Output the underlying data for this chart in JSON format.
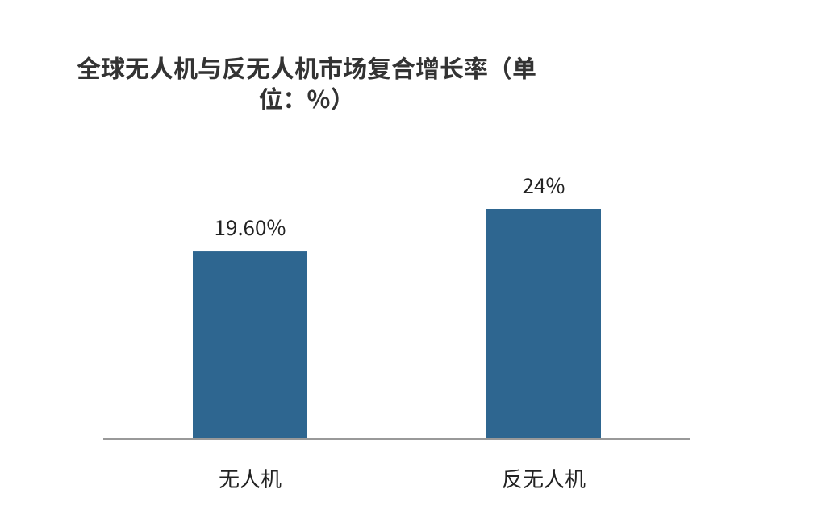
{
  "chart_data": {
    "type": "bar",
    "title": "全球无人机与反无人机市场复合增长率（单位：%）",
    "categories": [
      "无人机",
      "反无人机"
    ],
    "values": [
      19.6,
      24
    ],
    "value_labels": [
      "19.60%",
      "24%"
    ],
    "color": "#2e6690"
  }
}
